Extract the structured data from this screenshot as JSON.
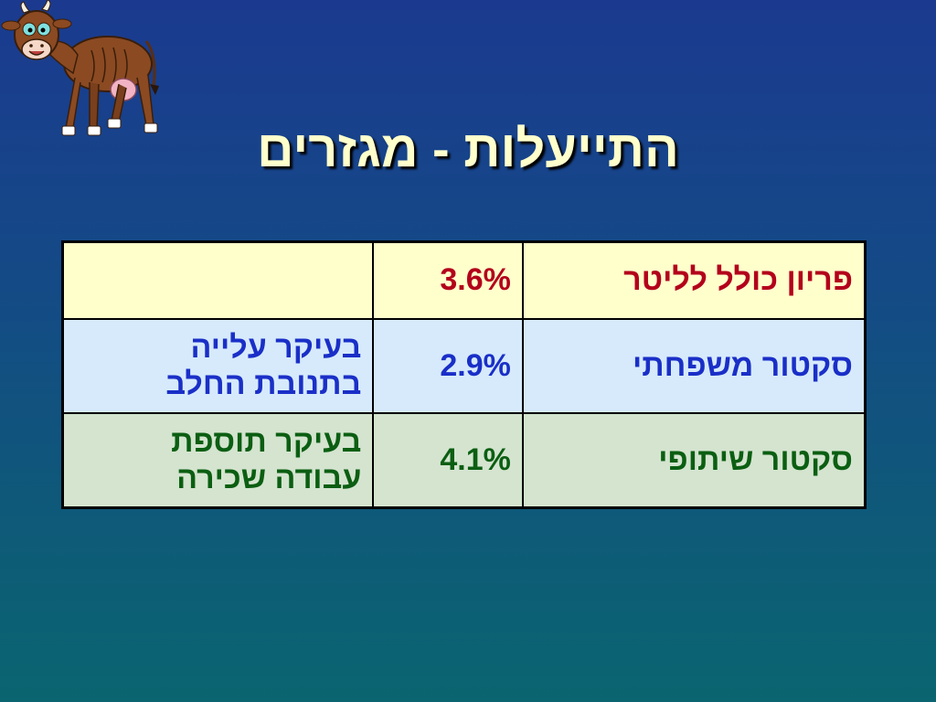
{
  "slide": {
    "title": "התייעלות - מגזרים"
  },
  "table": {
    "rows": [
      {
        "label": "פריון כולל לליטר",
        "value": "3.6%",
        "note": ""
      },
      {
        "label": "סקטור משפחתי",
        "value": "2.9%",
        "note_line1": "בעיקר עלייה",
        "note_line2": "בתנובת החלב"
      },
      {
        "label": "סקטור שיתופי",
        "value": "4.1%",
        "note_line1": "בעיקר תוספת",
        "note_line2": "עבודה שכירה"
      }
    ]
  },
  "colors": {
    "row1_text": "#b3001b",
    "row2_text": "#1a2fc7",
    "row3_text": "#0b5e12",
    "title_text": "#ffffcc"
  },
  "images": {
    "cow": "cartoon-cow-illustration"
  }
}
